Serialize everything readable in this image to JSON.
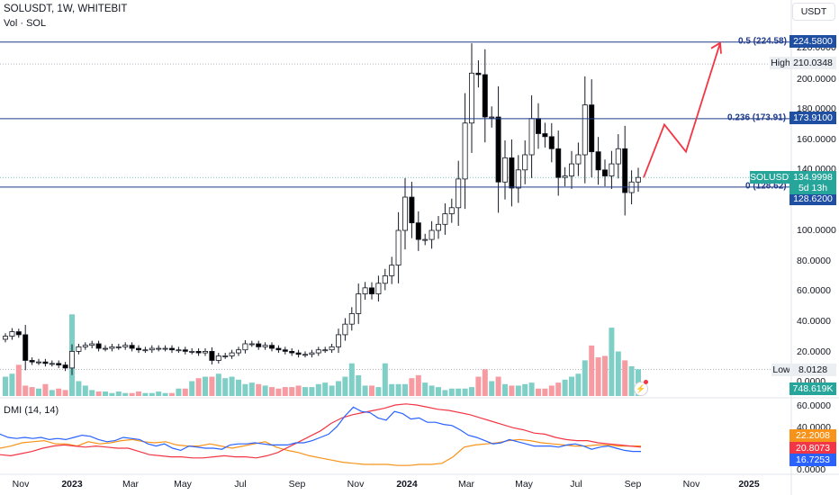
{
  "header": {
    "symbol_line": "SOLUSDT, 1W, WHITEBIT",
    "volume_label": "Vol · SOL",
    "dmi_label": "DMI (14, 14)"
  },
  "currency_button": "USDT",
  "price_axis": [
    "220.0000",
    "200.0000",
    "180.0000",
    "160.0000",
    "140.0000",
    "100.0000",
    "80.0000",
    "60.0000",
    "40.0000",
    "20.0000",
    "0.0000"
  ],
  "dmi_axis": [
    "60.0000",
    "40.0000",
    "0.0000"
  ],
  "time_axis": [
    {
      "label": "Nov",
      "bold": false
    },
    {
      "label": "2023",
      "bold": true
    },
    {
      "label": "Mar",
      "bold": false
    },
    {
      "label": "May",
      "bold": false
    },
    {
      "label": "Jul",
      "bold": false
    },
    {
      "label": "Sep",
      "bold": false
    },
    {
      "label": "Nov",
      "bold": false
    },
    {
      "label": "2024",
      "bold": true
    },
    {
      "label": "Mar",
      "bold": false
    },
    {
      "label": "May",
      "bold": false
    },
    {
      "label": "Jul",
      "bold": false
    },
    {
      "label": "Sep",
      "bold": false
    },
    {
      "label": "Nov",
      "bold": false
    },
    {
      "label": "2025",
      "bold": true
    }
  ],
  "fib_levels": [
    {
      "label": "0.5 (224.58)",
      "price": 224.58,
      "tag": "224.5800"
    },
    {
      "label": "0.236 (173.91)",
      "price": 173.91,
      "tag": "173.9100"
    },
    {
      "label": "0 (128.62)",
      "price": 128.62,
      "tag": "128.6200"
    }
  ],
  "high": {
    "label": "High",
    "value": "210.0348",
    "price": 210.0348
  },
  "low": {
    "label": "Low",
    "value": "8.0128",
    "price": 8.0128
  },
  "last_price": {
    "symbol": "SOLUSDT",
    "value": "134.9998",
    "countdown": "5d 13h",
    "price": 134.9998
  },
  "volume_tag": "748.619K",
  "dmi_tags": [
    {
      "value": "22.2008",
      "color": "#f7931a",
      "level": 22.2008
    },
    {
      "value": "20.8073",
      "color": "#f23645",
      "level": 20.8073
    },
    {
      "value": "16.7253",
      "color": "#2962ff",
      "level": 16.7253
    }
  ],
  "colors": {
    "fib": "#1e3a8a",
    "tag_blue": "#1e4fa3",
    "arrow": "#f23645",
    "vol_up": "#7fcfc6",
    "vol_down": "#f59ba1",
    "plus_di": "#2962ff",
    "minus_di": "#f7931a",
    "adx": "#f23645"
  },
  "chart_data": {
    "type": "candlestick",
    "interval": "1W",
    "price_range": [
      0,
      230
    ],
    "dmi_range": [
      0,
      60
    ],
    "closes": [
      30,
      33,
      31,
      14,
      13,
      13,
      12,
      12,
      11,
      9,
      20,
      23,
      24,
      25,
      22,
      22,
      23,
      23,
      24,
      22,
      21,
      21,
      22,
      22,
      22,
      21,
      21,
      20,
      20,
      19,
      20,
      14,
      17,
      17,
      19,
      21,
      25,
      25,
      23,
      24,
      22,
      21,
      20,
      19,
      18,
      18,
      19,
      21,
      21,
      23,
      31,
      38,
      45,
      58,
      62,
      58,
      65,
      70,
      77,
      100,
      122,
      105,
      94,
      94,
      100,
      104,
      111,
      115,
      134,
      171,
      204,
      203,
      175,
      175,
      132,
      148,
      128,
      140,
      150,
      174,
      164,
      162,
      154,
      135,
      136,
      144,
      150,
      183,
      152,
      140,
      136,
      144,
      154,
      125,
      132,
      135
    ],
    "volumes": [
      13,
      15,
      21,
      7,
      6,
      5,
      8,
      4,
      5,
      4,
      55,
      10,
      7,
      4,
      3,
      3,
      2,
      3,
      2,
      2,
      3,
      2,
      2,
      3,
      2,
      2,
      5,
      5,
      10,
      12,
      13,
      13,
      15,
      12,
      13,
      11,
      8,
      9,
      8,
      7,
      6,
      5,
      6,
      6,
      7,
      6,
      6,
      8,
      9,
      7,
      10,
      13,
      22,
      14,
      7,
      7,
      6,
      22,
      8,
      8,
      8,
      12,
      14,
      9,
      7,
      6,
      4,
      5,
      5,
      5,
      6,
      13,
      18,
      10,
      13,
      8,
      7,
      7,
      8,
      9,
      5,
      5,
      7,
      9,
      11,
      13,
      15,
      24,
      34,
      26,
      27,
      46,
      30,
      24,
      20,
      18
    ],
    "plus_di": [
      33,
      30,
      29,
      30,
      29,
      30,
      28,
      29,
      28,
      30,
      32,
      31,
      28,
      26,
      27,
      30,
      29,
      28,
      24,
      22,
      24,
      20,
      18,
      22,
      21,
      20,
      20,
      19,
      23,
      24,
      24,
      25,
      24,
      23,
      23,
      23,
      25,
      25,
      27,
      30,
      33,
      40,
      50,
      58,
      54,
      53,
      48,
      46,
      54,
      52,
      47,
      48,
      44,
      44,
      42,
      41,
      37,
      32,
      30,
      27,
      24,
      25,
      28,
      26,
      24,
      22,
      22,
      22,
      21,
      23,
      24,
      22,
      19,
      21,
      22,
      20,
      18,
      17,
      17
    ],
    "minus_di": [
      20,
      22,
      25,
      26,
      27,
      24,
      24,
      22,
      26,
      24,
      25,
      27,
      28,
      26,
      25,
      26,
      23,
      22,
      22,
      24,
      22,
      20,
      22,
      24,
      26,
      21,
      18,
      16,
      13,
      11,
      9,
      7,
      6,
      5,
      5,
      5,
      4,
      4,
      5,
      5,
      6,
      12,
      21,
      23,
      24,
      25,
      27,
      28,
      27,
      25,
      24,
      23,
      22,
      22,
      23,
      23,
      22,
      22,
      22
    ],
    "adx": [
      14,
      13,
      15,
      17,
      20,
      22,
      23,
      22,
      21,
      22,
      21,
      20,
      20,
      17,
      14,
      13,
      12,
      12,
      11,
      11,
      12,
      13,
      12,
      12,
      11,
      13,
      16,
      21,
      26,
      31,
      36,
      43,
      48,
      51,
      53,
      55,
      57,
      60,
      61,
      60,
      58,
      56,
      55,
      53,
      51,
      48,
      45,
      42,
      39,
      37,
      34,
      33,
      30,
      28,
      27,
      27,
      25,
      24,
      23,
      22,
      21
    ]
  }
}
